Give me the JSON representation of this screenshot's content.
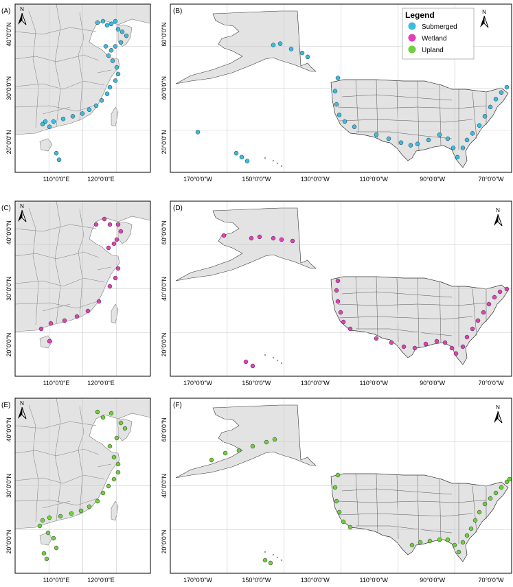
{
  "figure": {
    "panels": [
      {
        "label": "(A)",
        "region": "china",
        "color": "#3bbbe0",
        "ylabels": [
          "40°0'0\"N",
          "30°0'0\"N",
          "20°0'0\"N"
        ],
        "xlabels": [
          "110°0'0\"E",
          "120°0'0\"E"
        ]
      },
      {
        "label": "(B)",
        "region": "usa",
        "color": "#3bbbe0",
        "ylabels": [
          "60°0'0\"N",
          "40°0'0\"N",
          "20°0'0\"N"
        ],
        "xlabels": [
          "170°0'0\"W",
          "150°0'0\"W",
          "130°0'0\"W",
          "110°0'0\"W",
          "90°0'0\"W",
          "70°0'0\"W"
        ]
      },
      {
        "label": "(C)",
        "region": "china",
        "color": "#e23fb8",
        "ylabels": [
          "40°0'0\"N",
          "30°0'0\"N",
          "20°0'0\"N"
        ],
        "xlabels": [
          "110°0'0\"E",
          "120°0'0\"E"
        ]
      },
      {
        "label": "(D)",
        "region": "usa",
        "color": "#e23fb8",
        "ylabels": [
          "60°0'0\"N",
          "40°0'0\"N",
          "20°0'0\"N"
        ],
        "xlabels": [
          "170°0'0\"W",
          "150°0'0\"W",
          "130°0'0\"W",
          "110°0'0\"W",
          "90°0'0\"W",
          "70°0'0\"W"
        ]
      },
      {
        "label": "(E)",
        "region": "china",
        "color": "#6fcf3e",
        "ylabels": [
          "40°0'0\"N",
          "30°0'0\"N",
          "20°0'0\"N"
        ],
        "xlabels": [
          "110°0'0\"E",
          "120°0'0\"E"
        ]
      },
      {
        "label": "(F)",
        "region": "usa",
        "color": "#6fcf3e",
        "ylabels": [
          "60°0'0\"N",
          "40°0'0\"N",
          "20°0'0\"N"
        ],
        "xlabels": [
          "170°0'0\"W",
          "150°0'0\"W",
          "130°0'0\"W",
          "110°0'0\"W",
          "90°0'0\"W",
          "70°0'0\"W"
        ]
      }
    ],
    "north_label": "N",
    "legend": {
      "title": "Legend",
      "items": [
        {
          "label": "Submerged",
          "color": "#3bbbe0"
        },
        {
          "label": "Wetland",
          "color": "#e23fb8"
        },
        {
          "label": "Upland",
          "color": "#6fcf3e"
        }
      ]
    }
  }
}
